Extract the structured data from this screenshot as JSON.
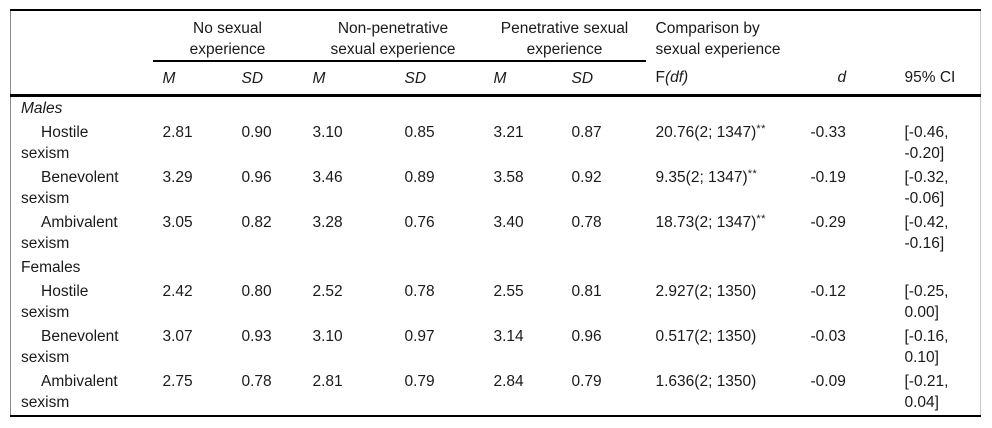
{
  "colors": {
    "rule": "#000000",
    "text": "#1a1a1a",
    "background": "#ffffff"
  },
  "table": {
    "groups": [
      {
        "label": "No sexual experience"
      },
      {
        "label": "Non-penetrative sexual experience"
      },
      {
        "label": "Penetrative sexual experience"
      },
      {
        "label": "Comparison by sexual experience"
      }
    ],
    "subheaders": {
      "m1": "M",
      "sd1": "SD",
      "m2": "M",
      "sd2": "SD",
      "m3": "M",
      "sd3": "SD",
      "f": "F",
      "f_df": "(df)",
      "d": "d",
      "ci": "95% CI"
    },
    "rows": [
      {
        "label_line1": "Males",
        "label_line2": ""
      },
      {
        "label_line1": "Hostile",
        "label_line2": "sexism",
        "m1": "2.81",
        "sd1": "0.90",
        "m2": "3.10",
        "sd2": "0.85",
        "m3": "3.21",
        "sd3": "0.87",
        "f": "20.76(2; 1347)",
        "f_sup": "**",
        "d": "-0.33",
        "ci": "[-0.46, -0.20]"
      },
      {
        "label_line1": "Benevolent",
        "label_line2": "sexism",
        "m1": "3.29",
        "sd1": "0.96",
        "m2": "3.46",
        "sd2": "0.89",
        "m3": "3.58",
        "sd3": "0.92",
        "f": "9.35(2; 1347)",
        "f_sup": "**",
        "d": "-0.19",
        "ci": "[-0.32, -0.06]"
      },
      {
        "label_line1": "Ambivalent",
        "label_line2": "sexism",
        "m1": "3.05",
        "sd1": "0.82",
        "m2": "3.28",
        "sd2": "0.76",
        "m3": "3.40",
        "sd3": "0.78",
        "f": "18.73(2; 1347)",
        "f_sup": "**",
        "d": "-0.29",
        "ci": "[-0.42, -0.16]"
      },
      {
        "label_line1": "Females",
        "label_line2": ""
      },
      {
        "label_line1": "Hostile",
        "label_line2": "sexism",
        "m1": "2.42",
        "sd1": "0.80",
        "m2": "2.52",
        "sd2": "0.78",
        "m3": "2.55",
        "sd3": "0.81",
        "f": "2.927(2; 1350)",
        "f_sup": "",
        "d": "-0.12",
        "ci": "[-0.25, 0.00]"
      },
      {
        "label_line1": "Benevolent",
        "label_line2": "sexism",
        "m1": "3.07",
        "sd1": "0.93",
        "m2": "3.10",
        "sd2": "0.97",
        "m3": "3.14",
        "sd3": "0.96",
        "f": "0.517(2; 1350)",
        "f_sup": "",
        "d": "-0.03",
        "ci": "[-0.16, 0.10]"
      },
      {
        "label_line1": "Ambivalent",
        "label_line2": "sexism",
        "m1": "2.75",
        "sd1": "0.78",
        "m2": "2.81",
        "sd2": "0.79",
        "m3": "2.84",
        "sd3": "0.79",
        "f": "1.636(2; 1350)",
        "f_sup": "",
        "d": "-0.09",
        "ci": "[-0.21, 0.04]"
      }
    ]
  }
}
